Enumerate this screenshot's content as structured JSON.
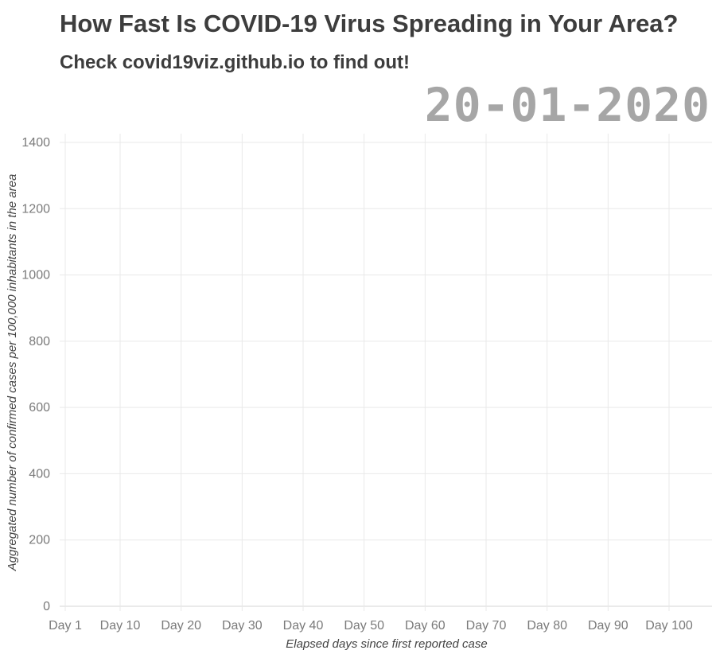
{
  "title": "How Fast Is COVID-19 Virus Spreading in Your Area?",
  "subtitle": "Check covid19viz.github.io to find out!",
  "date_label": "20-01-2020",
  "chart_data": {
    "type": "line",
    "title": "How Fast Is COVID-19 Virus Spreading in Your Area?",
    "subtitle": "Check covid19viz.github.io to find out!",
    "xlabel": "Elapsed days since first reported case",
    "ylabel": "Aggregated number of confirmed cases per 100,000 inhabitants in the area",
    "x_ticks": [
      {
        "value": 1,
        "label": "Day 1"
      },
      {
        "value": 10,
        "label": "Day 10"
      },
      {
        "value": 20,
        "label": "Day 20"
      },
      {
        "value": 30,
        "label": "Day 30"
      },
      {
        "value": 40,
        "label": "Day 40"
      },
      {
        "value": 50,
        "label": "Day 50"
      },
      {
        "value": 60,
        "label": "Day 60"
      },
      {
        "value": 70,
        "label": "Day 70"
      },
      {
        "value": 80,
        "label": "Day 80"
      },
      {
        "value": 90,
        "label": "Day 90"
      },
      {
        "value": 100,
        "label": "Day 100"
      }
    ],
    "y_ticks": [
      0,
      200,
      400,
      600,
      800,
      1000,
      1200,
      1400
    ],
    "xlim": [
      1,
      107
    ],
    "ylim": [
      0,
      1430
    ],
    "grid": true,
    "series": []
  }
}
